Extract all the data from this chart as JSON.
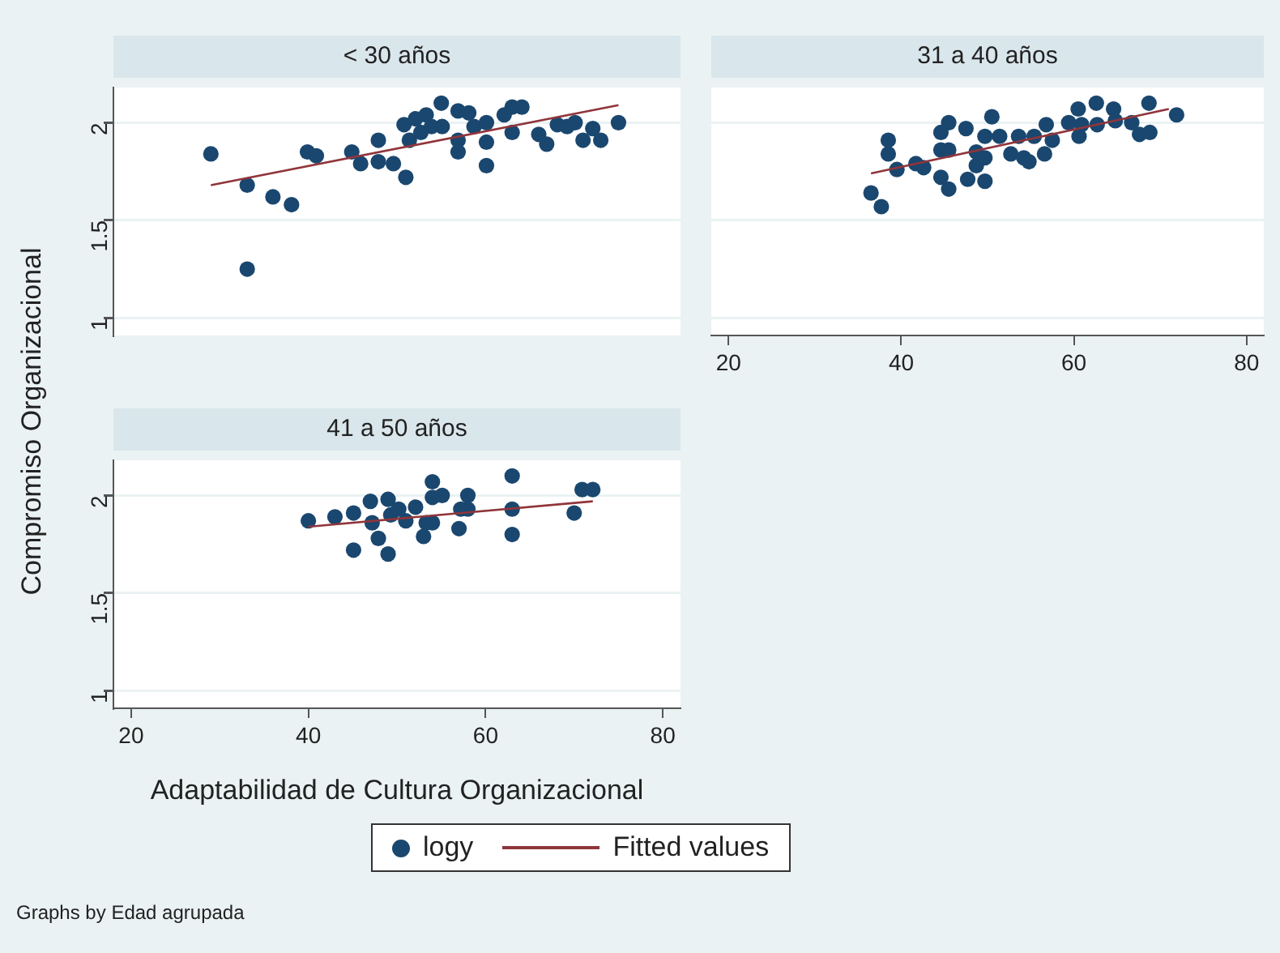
{
  "chart_data": [
    {
      "type": "scatter",
      "title": "< 30 años",
      "legend": "bottom",
      "xlim": [
        18,
        82
      ],
      "xticks": [
        20,
        40,
        60,
        80
      ],
      "ylim": [
        0.91,
        2.18
      ],
      "yticks": [
        1,
        1.5,
        2
      ],
      "grid": "y",
      "tick_labels": "y",
      "series": [
        {
          "name": "logy",
          "marker": "circle",
          "color": "#1a476f",
          "x": [
            29.0,
            33.1,
            33.1,
            36.0,
            38.1,
            39.9,
            40.9,
            44.9,
            45.9,
            47.9,
            47.9,
            49.6,
            51.0,
            50.8,
            51.4,
            52.1,
            52.7,
            53.3,
            53.9,
            55.0,
            55.1,
            56.9,
            56.9,
            56.9,
            58.1,
            58.7,
            60.1,
            60.1,
            60.1,
            62.1,
            63.0,
            63.0,
            64.1,
            66.0,
            66.9,
            68.1,
            69.2,
            70.1,
            71.0,
            72.1,
            73.0,
            75.0
          ],
          "values": [
            1.84,
            1.68,
            1.25,
            1.62,
            1.58,
            1.85,
            1.83,
            1.85,
            1.79,
            1.91,
            1.8,
            1.79,
            1.72,
            1.99,
            1.91,
            2.02,
            1.95,
            2.04,
            1.98,
            2.1,
            1.98,
            2.06,
            1.91,
            1.85,
            2.05,
            1.98,
            2.0,
            1.9,
            1.78,
            2.04,
            2.08,
            1.95,
            2.08,
            1.94,
            1.89,
            1.99,
            1.98,
            2.0,
            1.91,
            1.97,
            1.91,
            2.0
          ]
        },
        {
          "name": "Fitted values",
          "type": "line",
          "marker": "none",
          "color": "#90353b",
          "x": [
            29.0,
            75.0
          ],
          "values": [
            1.68,
            2.09
          ]
        }
      ]
    },
    {
      "type": "scatter",
      "title": "31 a 40 años",
      "xlim": [
        18,
        82
      ],
      "xticks": [
        20,
        40,
        60,
        80
      ],
      "ylim": [
        0.91,
        2.18
      ],
      "yticks": [
        1,
        1.5,
        2
      ],
      "grid": "y",
      "tick_labels": "x",
      "series": [
        {
          "marker": "circle",
          "color": "#1a476f",
          "x": [
            36.5,
            37.7,
            38.5,
            38.5,
            39.5,
            41.7,
            42.6,
            44.6,
            44.6,
            44.6,
            45.5,
            45.5,
            45.5,
            47.5,
            47.7,
            48.7,
            48.7,
            49.7,
            49.7,
            49.7,
            50.5,
            51.4,
            52.7,
            53.6,
            54.2,
            54.8,
            55.4,
            56.6,
            56.8,
            57.5,
            59.4,
            60.5,
            60.6,
            60.9,
            62.6,
            62.7,
            64.6,
            64.8,
            66.7,
            67.6,
            68.7,
            68.8,
            71.9
          ],
          "values": [
            1.64,
            1.57,
            1.91,
            1.84,
            1.76,
            1.79,
            1.77,
            1.72,
            1.86,
            1.95,
            2.0,
            1.66,
            1.86,
            1.97,
            1.71,
            1.78,
            1.85,
            1.7,
            1.82,
            1.93,
            2.03,
            1.93,
            1.84,
            1.93,
            1.82,
            1.8,
            1.93,
            1.84,
            1.99,
            1.91,
            2.0,
            2.07,
            1.93,
            1.99,
            2.1,
            1.99,
            2.07,
            2.01,
            2.0,
            1.94,
            2.1,
            1.95,
            2.04
          ]
        },
        {
          "type": "line",
          "marker": "none",
          "color": "#90353b",
          "x": [
            36.5,
            71.0
          ],
          "values": [
            1.74,
            2.07
          ]
        }
      ]
    },
    {
      "type": "scatter",
      "title": "41 a 50 años",
      "xlabel": "Adaptabilidad de Cultura Organizacional",
      "ylabel": "Compromiso Organizacional",
      "annotations": [
        "Graphs by Edad agrupada"
      ],
      "xlim": [
        18,
        82
      ],
      "xticks": [
        20,
        40,
        60,
        80
      ],
      "ylim": [
        0.91,
        2.18
      ],
      "yticks": [
        1,
        1.5,
        2
      ],
      "grid": "y",
      "series": [
        {
          "marker": "circle",
          "color": "#1a476f",
          "x": [
            40.0,
            43.0,
            45.1,
            45.1,
            47.0,
            47.2,
            47.9,
            49.0,
            49.0,
            49.3,
            50.2,
            51.0,
            52.1,
            53.0,
            53.3,
            54.0,
            54.0,
            54.0,
            55.1,
            57.0,
            57.2,
            58.0,
            58.0,
            63.0,
            63.0,
            63.0,
            70.0,
            70.9,
            72.1
          ],
          "values": [
            1.87,
            1.89,
            1.91,
            1.72,
            1.97,
            1.86,
            1.78,
            1.98,
            1.7,
            1.9,
            1.93,
            1.87,
            1.94,
            1.79,
            1.86,
            2.07,
            1.99,
            1.86,
            2.0,
            1.83,
            1.93,
            2.0,
            1.93,
            2.1,
            1.93,
            1.8,
            1.91,
            2.03,
            2.03
          ]
        },
        {
          "type": "line",
          "marker": "none",
          "color": "#90353b",
          "x": [
            40.0,
            72.1
          ],
          "values": [
            1.84,
            1.97
          ]
        }
      ]
    }
  ]
}
